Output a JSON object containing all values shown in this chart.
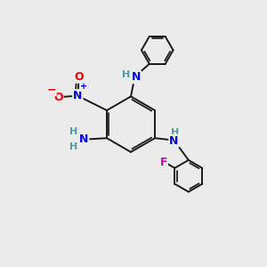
{
  "background_color": "#ebebeb",
  "bond_color": "#1a1a1a",
  "N_color": "#0000ee",
  "O_color": "#ee0000",
  "F_color": "#cc00bb",
  "H_color": "#4a9e9e",
  "figsize": [
    3.0,
    3.0
  ],
  "dpi": 100,
  "xlim": [
    0,
    10
  ],
  "ylim": [
    0,
    10
  ]
}
